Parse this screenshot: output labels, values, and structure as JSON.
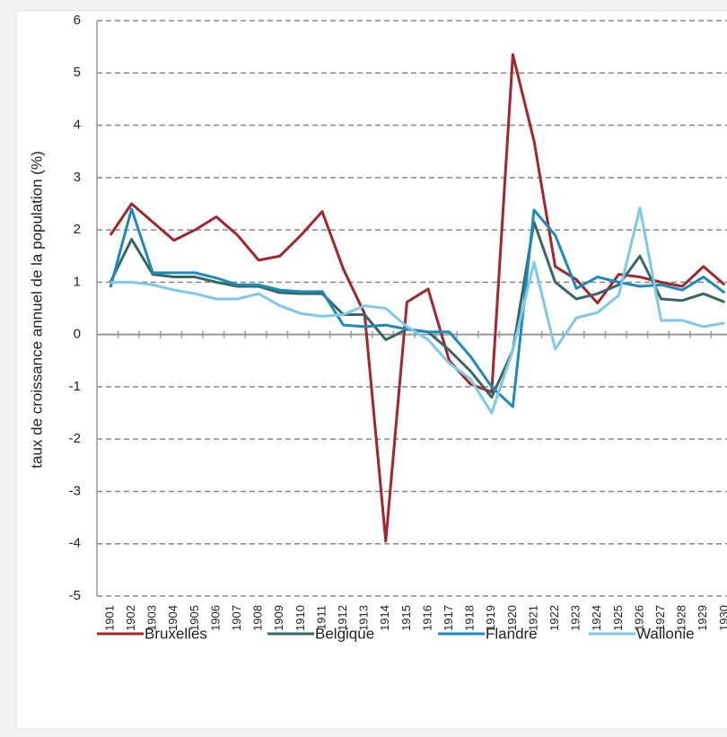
{
  "chart_data": {
    "type": "line",
    "y_label": "taux de croissance annuel de la population (%)",
    "categories": [
      "1901",
      "1902",
      "1903",
      "1904",
      "1905",
      "1906",
      "1907",
      "1908",
      "1909",
      "1910",
      "1911",
      "1912",
      "1913",
      "1914",
      "1915",
      "1916",
      "1917",
      "1918",
      "1919",
      "1920",
      "1921",
      "1922",
      "1923",
      "1924",
      "1925",
      "1926",
      "1927",
      "1928",
      "1929",
      "1930"
    ],
    "series": [
      {
        "name": "Bruxelles",
        "color": "#a4262c",
        "values": [
          1.9,
          2.5,
          2.15,
          1.8,
          2.0,
          2.25,
          1.9,
          1.42,
          1.5,
          1.9,
          2.35,
          1.25,
          0.4,
          -3.95,
          0.62,
          0.87,
          -0.5,
          -0.95,
          -1.1,
          5.35,
          3.7,
          1.3,
          1.05,
          0.6,
          1.15,
          1.1,
          1.0,
          0.92,
          1.3,
          0.95
        ]
      },
      {
        "name": "Belgique",
        "color": "#3a6665",
        "values": [
          1.0,
          1.82,
          1.15,
          1.1,
          1.1,
          1.0,
          0.92,
          0.92,
          0.8,
          0.78,
          0.78,
          0.38,
          0.38,
          -0.1,
          0.1,
          0.05,
          -0.3,
          -0.7,
          -1.2,
          -0.3,
          2.15,
          1.0,
          0.68,
          0.78,
          0.95,
          1.5,
          0.68,
          0.65,
          0.78,
          0.62
        ]
      },
      {
        "name": "Flandre",
        "color": "#1b8bbf",
        "values": [
          0.9,
          2.4,
          1.18,
          1.18,
          1.18,
          1.08,
          0.95,
          0.95,
          0.85,
          0.82,
          0.82,
          0.18,
          0.15,
          0.18,
          0.1,
          0.05,
          0.05,
          -0.42,
          -1.0,
          -1.38,
          2.38,
          1.9,
          0.88,
          1.1,
          1.0,
          0.92,
          0.95,
          0.85,
          1.1,
          0.8
        ]
      },
      {
        "name": "Wallonie",
        "color": "#7ec9ea",
        "values": [
          1.0,
          1.0,
          0.95,
          0.85,
          0.78,
          0.68,
          0.68,
          0.78,
          0.55,
          0.4,
          0.35,
          0.38,
          0.55,
          0.5,
          0.15,
          -0.1,
          -0.55,
          -0.85,
          -1.5,
          -0.3,
          1.38,
          -0.28,
          0.32,
          0.42,
          0.75,
          2.42,
          0.27,
          0.27,
          0.15,
          0.22
        ]
      }
    ],
    "ylim": [
      -5,
      6
    ],
    "yticks": [
      -5,
      -4,
      -3,
      -2,
      -1,
      0,
      1,
      2,
      3,
      4,
      5,
      6
    ],
    "grid": true
  }
}
